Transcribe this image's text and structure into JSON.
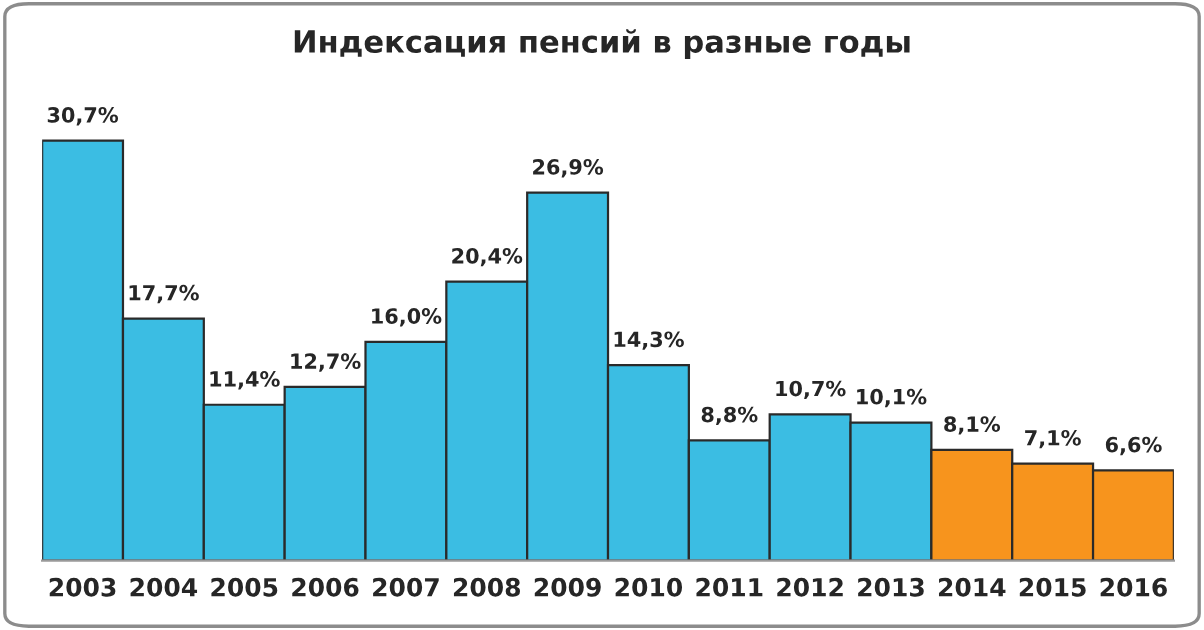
{
  "chart_data": {
    "type": "bar",
    "title": "Индексация пенсий в разные годы",
    "categories": [
      "2003",
      "2004",
      "2005",
      "2006",
      "2007",
      "2008",
      "2009",
      "2010",
      "2011",
      "2012",
      "2013",
      "2014",
      "2015",
      "2016"
    ],
    "values": [
      30.7,
      17.7,
      11.4,
      12.7,
      16.0,
      20.4,
      26.9,
      14.3,
      8.8,
      10.7,
      10.1,
      8.1,
      7.1,
      6.6
    ],
    "value_labels": [
      "30,7%",
      "17,7%",
      "11,4%",
      "12,7%",
      "16,0%",
      "20,4%",
      "26,9%",
      "14,3%",
      "8,8%",
      "10,7%",
      "10,1%",
      "8,1%",
      "7,1%",
      "6,6%"
    ],
    "colors": [
      "#3bbde3",
      "#3bbde3",
      "#3bbde3",
      "#3bbde3",
      "#3bbde3",
      "#3bbde3",
      "#3bbde3",
      "#3bbde3",
      "#3bbde3",
      "#3bbde3",
      "#3bbde3",
      "#f7941d",
      "#f7941d",
      "#f7941d"
    ],
    "grid": false,
    "legend": false
  }
}
